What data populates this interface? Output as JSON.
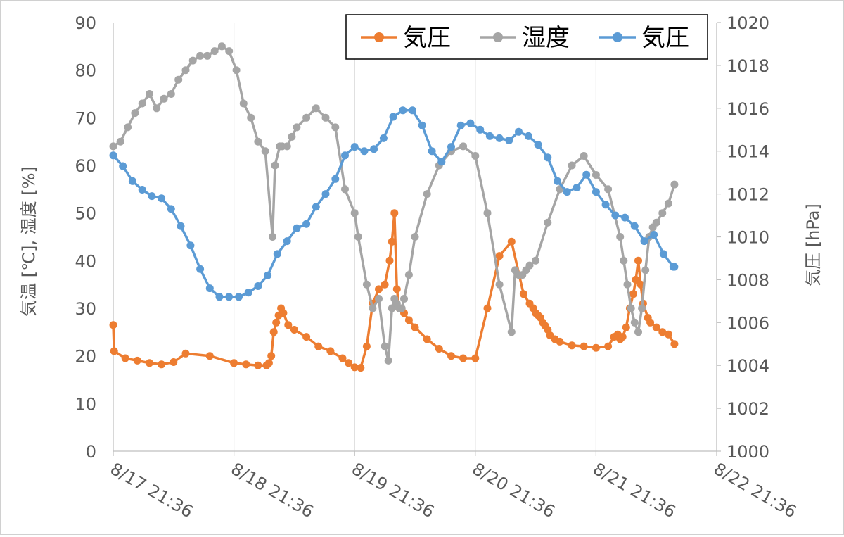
{
  "chart_data": {
    "type": "line",
    "title": "",
    "xlabel": "",
    "ylabel_left": "気温 [℃], 湿度 [%]",
    "ylabel_right": "気圧 [hPa]",
    "ylim_left": [
      0,
      90
    ],
    "ylim_right": [
      1000,
      1020
    ],
    "yticks_left": [
      "0",
      "10",
      "20",
      "30",
      "40",
      "50",
      "60",
      "70",
      "80",
      "90"
    ],
    "yticks_right": [
      "1000",
      "1002",
      "1004",
      "1006",
      "1008",
      "1010",
      "1012",
      "1014",
      "1016",
      "1018",
      "1020"
    ],
    "xlim": [
      "8/17 21:36",
      "8/22 21:36"
    ],
    "xticks": [
      "8/17 21:36",
      "8/18 21:36",
      "8/19 21:36",
      "8/20 21:36",
      "8/21 21:36",
      "8/22 21:36"
    ],
    "grid": "vertical",
    "legend_position": "top-right",
    "series": [
      {
        "name": "気圧",
        "axis": "left",
        "color": "#ED7D31",
        "x": [
          "8/17 21:36",
          "8/17 21:46",
          "8/18 00:00",
          "8/18 02:24",
          "8/18 04:48",
          "8/18 07:12",
          "8/18 09:36",
          "8/18 12:00",
          "8/18 16:48",
          "8/18 21:36",
          "8/19 00:00",
          "8/19 02:24",
          "8/19 04:05",
          "8/19 04:34",
          "8/19 05:02",
          "8/19 05:31",
          "8/19 06:00",
          "8/19 06:29",
          "8/19 06:58",
          "8/19 07:26",
          "8/19 08:24",
          "8/19 09:36",
          "8/19 12:00",
          "8/19 14:24",
          "8/19 16:48",
          "8/19 19:12",
          "8/19 20:24",
          "8/19 21:36",
          "8/19 22:48",
          "8/20 00:00",
          "8/20 01:12",
          "8/20 02:24",
          "8/20 03:36",
          "8/20 04:34",
          "8/20 05:02",
          "8/20 05:31",
          "8/20 06:00",
          "8/20 06:29",
          "8/20 07:26",
          "8/20 08:24",
          "8/20 09:36",
          "8/20 12:00",
          "8/20 14:24",
          "8/20 16:48",
          "8/20 19:12",
          "8/20 21:36",
          "8/21 00:00",
          "8/21 02:24",
          "8/21 04:48",
          "8/21 07:12",
          "8/21 08:24",
          "8/21 09:07",
          "8/21 09:36",
          "8/21 10:05",
          "8/21 10:34",
          "8/21 11:02",
          "8/21 11:31",
          "8/21 12:00",
          "8/21 12:29",
          "8/21 13:26",
          "8/21 14:24",
          "8/21 16:48",
          "8/21 19:12",
          "8/21 21:36",
          "8/22 00:00",
          "8/22 01:12",
          "8/22 01:55",
          "8/22 02:24",
          "8/22 02:53",
          "8/22 03:36",
          "8/22 04:19",
          "8/22 05:02",
          "8/22 05:31",
          "8/22 06:00",
          "8/22 06:29",
          "8/22 06:58",
          "8/22 07:55",
          "8/22 08:24",
          "8/22 09:36",
          "8/22 10:48",
          "8/22 12:00",
          "8/22 13:12"
        ],
        "y": [
          26.5,
          21,
          19.5,
          19,
          18.5,
          18.2,
          18.7,
          20.5,
          20,
          18.5,
          18.2,
          18,
          18,
          18.5,
          20,
          25,
          27,
          28.5,
          30,
          29,
          26.5,
          25.5,
          24,
          22,
          21,
          19.5,
          18.5,
          17.6,
          17.5,
          22,
          31,
          34,
          35,
          40,
          44,
          50,
          34,
          30,
          29,
          27.5,
          26,
          23.5,
          21.5,
          20,
          19.5,
          19.5,
          30,
          41,
          44,
          33,
          31,
          30,
          29,
          28.5,
          28,
          27,
          26.3,
          25.5,
          24.3,
          23.5,
          23,
          22.2,
          22,
          21.7,
          22,
          24,
          24.5,
          23.5,
          24,
          26,
          30,
          33,
          36,
          40,
          35,
          31,
          28,
          27,
          26,
          25,
          24.5,
          22.5
        ]
      },
      {
        "name": "湿度",
        "axis": "left",
        "color": "#A5A5A5",
        "x": [
          "8/17 21:36",
          "8/17 23:02",
          "8/18 00:29",
          "8/18 01:55",
          "8/18 03:22",
          "8/18 04:48",
          "8/18 06:14",
          "8/18 07:41",
          "8/18 09:07",
          "8/18 10:34",
          "8/18 12:00",
          "8/18 13:26",
          "8/18 14:53",
          "8/18 16:19",
          "8/18 17:46",
          "8/18 19:12",
          "8/18 20:38",
          "8/18 22:05",
          "8/18 23:31",
          "8/19 00:58",
          "8/19 02:24",
          "8/19 03:50",
          "8/19 05:17",
          "8/19 05:46",
          "8/19 06:43",
          "8/19 07:12",
          "8/19 08:10",
          "8/19 09:07",
          "8/19 10:05",
          "8/19 12:00",
          "8/19 13:55",
          "8/19 15:50",
          "8/19 17:46",
          "8/19 19:41",
          "8/19 21:36",
          "8/19 22:19",
          "8/20 00:00",
          "8/20 01:12",
          "8/20 02:24",
          "8/20 03:36",
          "8/20 04:19",
          "8/20 05:02",
          "8/20 05:31",
          "8/20 06:00",
          "8/20 06:29",
          "8/20 06:58",
          "8/20 07:26",
          "8/20 08:24",
          "8/20 09:36",
          "8/20 12:00",
          "8/20 14:24",
          "8/20 16:48",
          "8/20 19:12",
          "8/20 21:36",
          "8/21 00:00",
          "8/21 02:24",
          "8/21 04:48",
          "8/21 05:31",
          "8/21 06:14",
          "8/21 06:58",
          "8/21 07:41",
          "8/21 08:24",
          "8/21 09:36",
          "8/21 12:00",
          "8/21 14:24",
          "8/21 16:48",
          "8/21 19:12",
          "8/21 21:36",
          "8/22 00:00",
          "8/22 02:24",
          "8/22 03:07",
          "8/22 03:50",
          "8/22 04:34",
          "8/22 05:17",
          "8/22 06:00",
          "8/22 06:43",
          "8/22 07:26",
          "8/22 08:10",
          "8/22 08:53",
          "8/22 09:36",
          "8/22 10:48",
          "8/22 12:00",
          "8/22 13:12"
        ],
        "y": [
          64,
          65,
          68,
          71,
          73,
          75,
          72,
          74,
          75,
          78,
          80,
          82,
          83,
          83,
          84,
          85,
          84,
          80,
          73,
          70,
          65,
          63,
          45,
          60,
          64,
          64,
          64,
          66,
          68,
          70,
          72,
          70,
          68,
          55,
          50,
          45,
          35,
          30,
          32,
          22,
          19,
          30,
          32,
          31,
          30,
          30,
          32,
          37,
          45,
          54,
          60,
          63,
          64,
          62,
          50,
          35,
          25,
          38,
          37,
          37,
          38,
          39,
          40,
          48,
          55,
          60,
          62,
          58,
          55,
          45,
          40,
          35,
          30,
          27,
          25,
          30,
          38,
          45,
          47,
          48,
          50,
          52,
          56
        ]
      },
      {
        "name": "気圧",
        "axis": "right",
        "color": "#5B9BD5",
        "x": [
          "8/17 21:36",
          "8/17 23:31",
          "8/18 01:26",
          "8/18 03:22",
          "8/18 05:17",
          "8/18 07:12",
          "8/18 09:07",
          "8/18 11:02",
          "8/18 12:58",
          "8/18 14:53",
          "8/18 16:48",
          "8/18 18:43",
          "8/18 20:38",
          "8/18 22:34",
          "8/19 00:29",
          "8/19 02:24",
          "8/19 04:19",
          "8/19 06:14",
          "8/19 08:10",
          "8/19 10:05",
          "8/19 12:00",
          "8/19 13:55",
          "8/19 15:50",
          "8/19 17:46",
          "8/19 19:41",
          "8/19 21:36",
          "8/19 23:31",
          "8/20 01:26",
          "8/20 03:22",
          "8/20 05:17",
          "8/20 07:12",
          "8/20 09:07",
          "8/20 11:02",
          "8/20 12:58",
          "8/20 14:53",
          "8/20 16:48",
          "8/20 18:43",
          "8/20 20:38",
          "8/20 22:34",
          "8/21 00:29",
          "8/21 02:24",
          "8/21 04:19",
          "8/21 06:14",
          "8/21 08:10",
          "8/21 10:05",
          "8/21 12:00",
          "8/21 13:55",
          "8/21 15:50",
          "8/21 17:46",
          "8/21 19:41",
          "8/21 21:36",
          "8/21 23:31",
          "8/22 01:26",
          "8/22 03:22",
          "8/22 05:17",
          "8/22 07:12",
          "8/22 09:07",
          "8/22 11:02",
          "8/22 12:58",
          "8/22 13:12"
        ],
        "y": [
          1013.8,
          1013.3,
          1012.6,
          1012.2,
          1011.9,
          1011.8,
          1011.3,
          1010.5,
          1009.6,
          1008.5,
          1007.6,
          1007.2,
          1007.2,
          1007.2,
          1007.4,
          1007.7,
          1008.2,
          1009.2,
          1009.8,
          1010.4,
          1010.6,
          1011.4,
          1012.0,
          1012.7,
          1013.8,
          1014.2,
          1014.0,
          1014.1,
          1014.6,
          1015.6,
          1015.9,
          1015.9,
          1015.2,
          1014.0,
          1013.5,
          1014.2,
          1015.2,
          1015.3,
          1015.0,
          1014.7,
          1014.6,
          1014.5,
          1014.9,
          1014.7,
          1014.3,
          1013.7,
          1012.6,
          1012.1,
          1012.3,
          1012.9,
          1012.1,
          1011.5,
          1011.0,
          1010.9,
          1010.5,
          1009.8,
          1010.1,
          1009.2,
          1008.6,
          1008.6
        ]
      }
    ]
  }
}
